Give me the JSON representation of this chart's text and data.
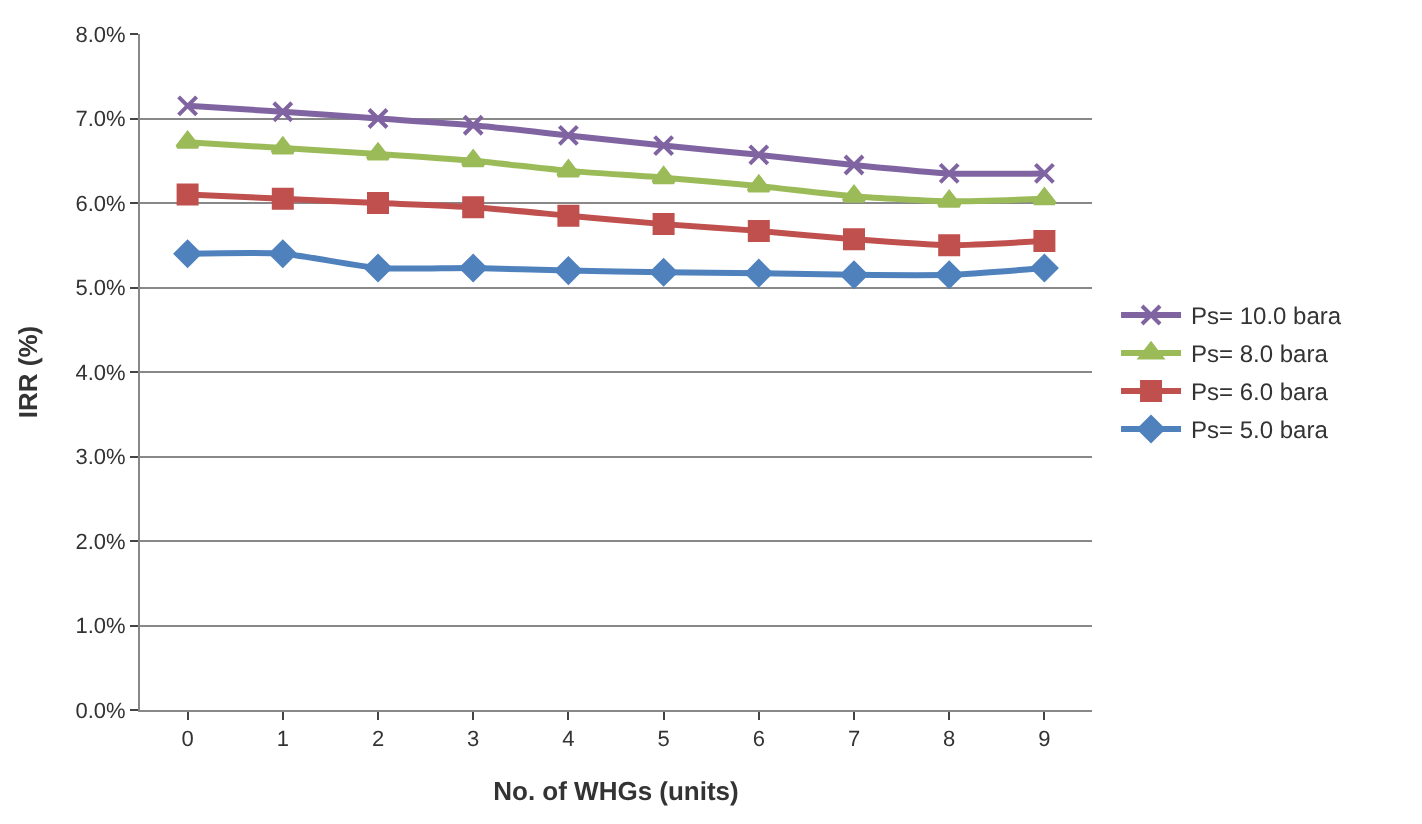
{
  "chart_data": {
    "type": "line",
    "xlabel": "No. of WHGs (units)",
    "ylabel": "IRR (%)",
    "categories": [
      "0",
      "1",
      "2",
      "3",
      "4",
      "5",
      "6",
      "7",
      "8",
      "9"
    ],
    "series": [
      {
        "name": "Ps= 10.0 bara",
        "color": "#8064a2",
        "marker": "cross",
        "values": [
          7.15,
          7.08,
          7.0,
          6.92,
          6.8,
          6.68,
          6.57,
          6.45,
          6.35,
          6.35
        ]
      },
      {
        "name": "Ps= 8.0 bara",
        "color": "#9bbb59",
        "marker": "triangle",
        "values": [
          6.72,
          6.65,
          6.58,
          6.5,
          6.38,
          6.3,
          6.2,
          6.08,
          6.02,
          6.05
        ]
      },
      {
        "name": "Ps= 6.0 bara",
        "color": "#c0504d",
        "marker": "square",
        "values": [
          6.1,
          6.05,
          6.0,
          5.95,
          5.85,
          5.75,
          5.67,
          5.57,
          5.5,
          5.55
        ]
      },
      {
        "name": "Ps= 5.0 bara",
        "color": "#4f81bd",
        "marker": "diamond",
        "values": [
          5.4,
          5.4,
          5.23,
          5.23,
          5.2,
          5.18,
          5.17,
          5.15,
          5.15,
          5.23
        ]
      }
    ],
    "ylim": [
      0,
      8
    ],
    "yticks": [
      {
        "value": 0,
        "label": "0.0%"
      },
      {
        "value": 1,
        "label": "1.0%"
      },
      {
        "value": 2,
        "label": "2.0%"
      },
      {
        "value": 3,
        "label": "3.0%"
      },
      {
        "value": 4,
        "label": "4.0%"
      },
      {
        "value": 5,
        "label": "5.0%"
      },
      {
        "value": 6,
        "label": "6.0%"
      },
      {
        "value": 7,
        "label": "7.0%"
      },
      {
        "value": 8,
        "label": "8.0%"
      }
    ],
    "grid": "y",
    "legend": "right",
    "line_style": "solid"
  }
}
